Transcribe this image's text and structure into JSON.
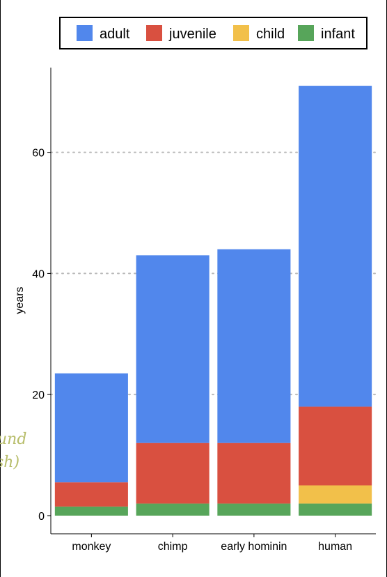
{
  "chart_data": {
    "type": "bar",
    "stacked": true,
    "categories": [
      "monkey",
      "chimp",
      "early hominin",
      "human"
    ],
    "series": [
      {
        "name": "infant",
        "color": "#57a55a",
        "values": [
          1.5,
          2,
          2,
          2
        ]
      },
      {
        "name": "child",
        "color": "#f2c04a",
        "values": [
          0,
          0,
          0,
          3
        ]
      },
      {
        "name": "juvenile",
        "color": "#d95040",
        "values": [
          4,
          10,
          10,
          13
        ]
      },
      {
        "name": "adult",
        "color": "#5187ec",
        "values": [
          18,
          31,
          32,
          53
        ]
      }
    ],
    "legend_order": [
      "adult",
      "juvenile",
      "child",
      "infant"
    ],
    "legend_position": "top",
    "title": "",
    "xlabel": "",
    "ylabel": "years",
    "yticks": [
      0,
      20,
      40,
      60
    ],
    "ylim": [
      -3,
      74
    ],
    "grid": "horizontal dotted"
  },
  "annotation": {
    "lines": [
      "und",
      "sh)"
    ]
  }
}
